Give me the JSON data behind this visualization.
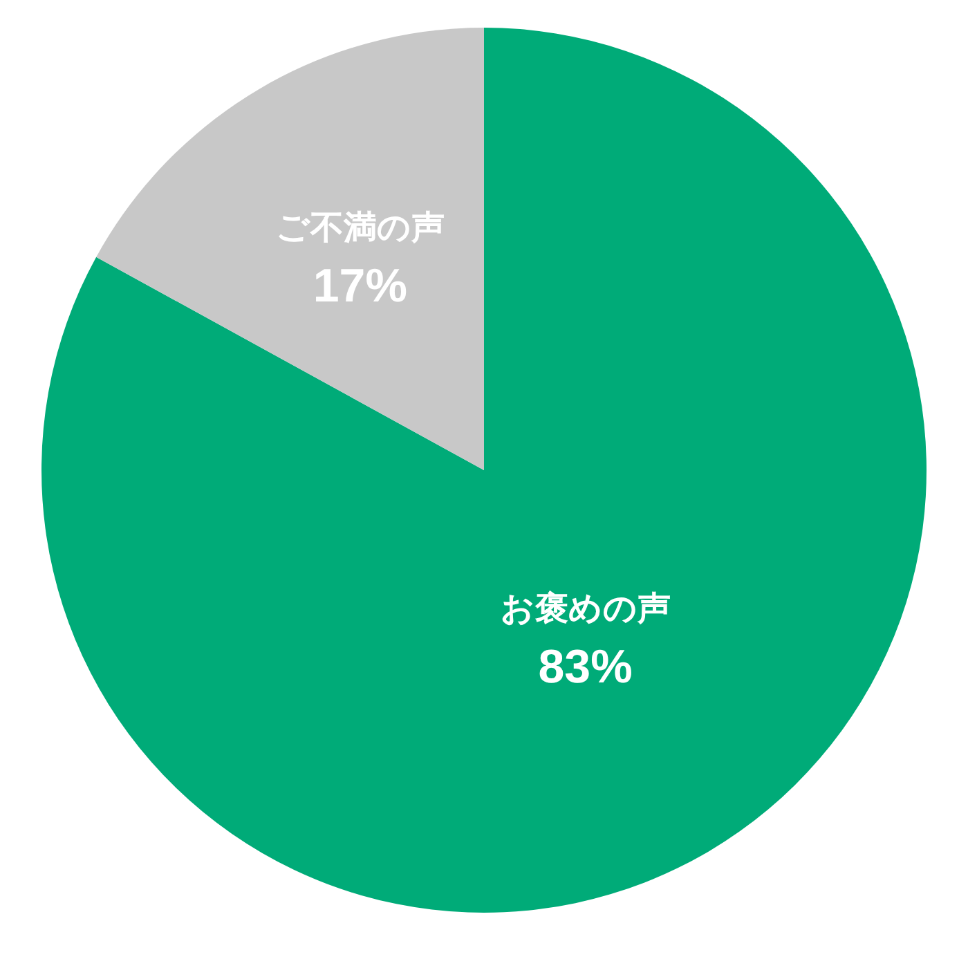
{
  "chart_data": {
    "type": "pie",
    "categories": [
      "お褒めの声",
      "ご不満の声"
    ],
    "values": [
      83,
      17
    ],
    "colors": [
      "#00ab78",
      "#c8c8c8"
    ],
    "value_labels": [
      "83%",
      "17%"
    ],
    "legend": false
  }
}
